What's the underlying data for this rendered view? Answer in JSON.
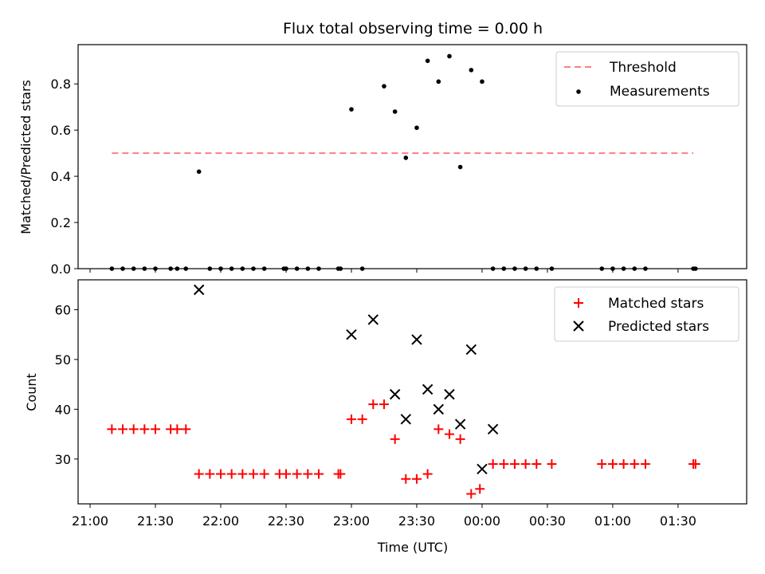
{
  "chart_data": [
    {
      "type": "scatter",
      "title": "Flux total observing time = 0.00 h",
      "ylabel": "Matched/Predicted stars",
      "xlabel": "",
      "ylim": [
        0,
        0.97
      ],
      "yticks": [
        "0.0",
        "0.2",
        "0.4",
        "0.6",
        "0.8"
      ],
      "ytick_values": [
        0.0,
        0.2,
        0.4,
        0.6,
        0.8
      ],
      "legend_position": "upper right",
      "threshold": {
        "name": "Threshold",
        "value": 0.5,
        "x_start": "21:10",
        "x_end": "01:37",
        "color": "#ff7f7f"
      },
      "series": [
        {
          "name": "Measurements",
          "color": "#000000",
          "x": [
            "21:10",
            "21:15",
            "21:20",
            "21:25",
            "21:30",
            "21:37",
            "21:40",
            "21:44",
            "21:50",
            "21:55",
            "22:00",
            "22:05",
            "22:10",
            "22:15",
            "22:20",
            "22:29",
            "22:30",
            "22:35",
            "22:40",
            "22:45",
            "22:54",
            "22:55",
            "23:00",
            "23:05",
            "23:15",
            "23:20",
            "23:25",
            "23:30",
            "23:35",
            "23:40",
            "23:45",
            "23:50",
            "23:55",
            "00:00",
            "00:05",
            "00:10",
            "00:15",
            "00:20",
            "00:25",
            "00:32",
            "00:55",
            "01:00",
            "01:05",
            "01:10",
            "01:15",
            "01:37",
            "01:38"
          ],
          "y": [
            0,
            0,
            0,
            0,
            0,
            0,
            0,
            0,
            0.42,
            0,
            0,
            0,
            0,
            0,
            0,
            0,
            0,
            0,
            0,
            0,
            0,
            0,
            0.69,
            0,
            0.79,
            0.68,
            0.48,
            0.61,
            0.9,
            0.81,
            0.92,
            0.44,
            0.86,
            0.81,
            0,
            0,
            0,
            0,
            0,
            0,
            0,
            0,
            0,
            0,
            0,
            0,
            0
          ]
        }
      ]
    },
    {
      "type": "scatter",
      "title": "",
      "ylabel": "Count",
      "xlabel": "Time (UTC)",
      "ylim": [
        21,
        66
      ],
      "yticks": [
        "30",
        "40",
        "50",
        "60"
      ],
      "ytick_values": [
        30,
        40,
        50,
        60
      ],
      "xticks": [
        "21:00",
        "21:30",
        "22:00",
        "22:30",
        "23:00",
        "23:30",
        "00:00",
        "00:30",
        "01:00",
        "01:30"
      ],
      "legend_position": "upper right",
      "series": [
        {
          "name": "Matched stars",
          "marker": "plus",
          "color": "#ff0000",
          "x": [
            "21:10",
            "21:15",
            "21:20",
            "21:25",
            "21:30",
            "21:37",
            "21:40",
            "21:44",
            "21:50",
            "21:55",
            "22:00",
            "22:05",
            "22:10",
            "22:15",
            "22:20",
            "22:27",
            "22:30",
            "22:35",
            "22:40",
            "22:45",
            "22:54",
            "22:55",
            "23:00",
            "23:05",
            "23:10",
            "23:15",
            "23:20",
            "23:25",
            "23:30",
            "23:35",
            "23:40",
            "23:45",
            "23:50",
            "23:55",
            "23:59",
            "00:05",
            "00:10",
            "00:15",
            "00:20",
            "00:25",
            "00:32",
            "00:55",
            "01:00",
            "01:05",
            "01:10",
            "01:15",
            "01:37",
            "01:38"
          ],
          "y": [
            36,
            36,
            36,
            36,
            36,
            36,
            36,
            36,
            27,
            27,
            27,
            27,
            27,
            27,
            27,
            27,
            27,
            27,
            27,
            27,
            27,
            27,
            38,
            38,
            41,
            41,
            34,
            26,
            26,
            27,
            36,
            35,
            34,
            23,
            24,
            29,
            29,
            29,
            29,
            29,
            29,
            29,
            29,
            29,
            29,
            29,
            29,
            29
          ]
        },
        {
          "name": "Predicted stars",
          "marker": "x",
          "color": "#000000",
          "x": [
            "21:50",
            "23:00",
            "23:10",
            "23:20",
            "23:25",
            "23:30",
            "23:35",
            "23:40",
            "23:45",
            "23:50",
            "23:55",
            "00:00",
            "00:05"
          ],
          "y": [
            64,
            55,
            58,
            43,
            38,
            54,
            44,
            40,
            43,
            37,
            52,
            28,
            36
          ]
        }
      ]
    }
  ]
}
